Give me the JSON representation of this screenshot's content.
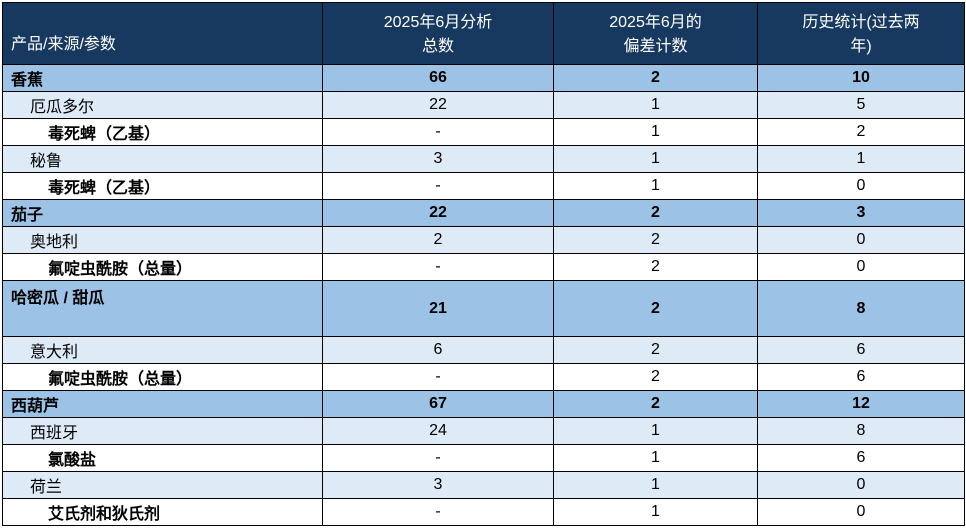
{
  "table": {
    "columns": [
      {
        "label": "产品/来源/参数"
      },
      {
        "label": "2025年6月分析\n总数"
      },
      {
        "label": "2025年6月的\n偏差计数"
      },
      {
        "label": "历史统计(过去两\n年)"
      }
    ],
    "rows": [
      {
        "type": "product",
        "tall": false,
        "label": "香蕉",
        "analyzed": "66",
        "deviations": "2",
        "history": "10"
      },
      {
        "type": "source",
        "tall": false,
        "label": "厄瓜多尔",
        "analyzed": "22",
        "deviations": "1",
        "history": "5"
      },
      {
        "type": "parameter",
        "tall": false,
        "label": "毒死蜱（乙基）",
        "analyzed": "-",
        "deviations": "1",
        "history": "2"
      },
      {
        "type": "source",
        "tall": false,
        "label": "秘鲁",
        "analyzed": "3",
        "deviations": "1",
        "history": "1"
      },
      {
        "type": "parameter",
        "tall": false,
        "label": "毒死蜱（乙基）",
        "analyzed": "-",
        "deviations": "1",
        "history": "0"
      },
      {
        "type": "product",
        "tall": false,
        "label": "茄子",
        "analyzed": "22",
        "deviations": "2",
        "history": "3"
      },
      {
        "type": "source",
        "tall": false,
        "label": "奥地利",
        "analyzed": "2",
        "deviations": "2",
        "history": "0"
      },
      {
        "type": "parameter",
        "tall": false,
        "label": "氟啶虫酰胺（总量）",
        "analyzed": "-",
        "deviations": "2",
        "history": "0"
      },
      {
        "type": "product",
        "tall": true,
        "label": "哈密瓜 / 甜瓜",
        "analyzed": "21",
        "deviations": "2",
        "history": "8"
      },
      {
        "type": "source",
        "tall": false,
        "label": "意大利",
        "analyzed": "6",
        "deviations": "2",
        "history": "6"
      },
      {
        "type": "parameter",
        "tall": false,
        "label": "氟啶虫酰胺（总量）",
        "analyzed": "-",
        "deviations": "2",
        "history": "6"
      },
      {
        "type": "product",
        "tall": false,
        "label": "西葫芦",
        "analyzed": "67",
        "deviations": "2",
        "history": "12"
      },
      {
        "type": "source",
        "tall": false,
        "label": "西班牙",
        "analyzed": "24",
        "deviations": "1",
        "history": "8"
      },
      {
        "type": "parameter",
        "tall": false,
        "label": "氯酸盐",
        "analyzed": "-",
        "deviations": "1",
        "history": "6"
      },
      {
        "type": "source",
        "tall": false,
        "label": "荷兰",
        "analyzed": "3",
        "deviations": "1",
        "history": "0"
      },
      {
        "type": "parameter",
        "tall": false,
        "label": "艾氏剂和狄氏剂",
        "analyzed": "-",
        "deviations": "1",
        "history": "0"
      }
    ],
    "colors": {
      "header_bg": "#17395F",
      "header_text": "#FFFFFF",
      "product_bg": "#9CC3E6",
      "source_bg": "#DEEAF6",
      "parameter_bg": "#FFFFFF",
      "border": "#000000"
    }
  }
}
